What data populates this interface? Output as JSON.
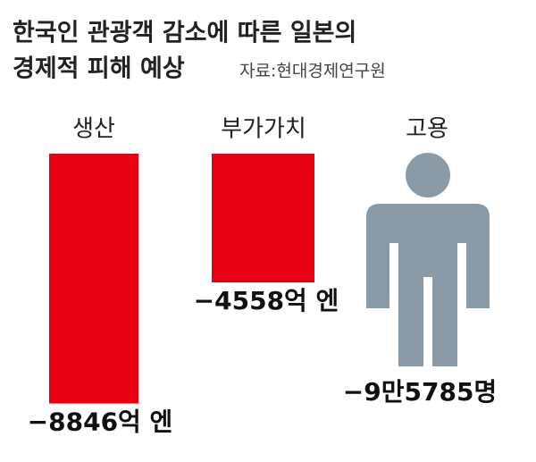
{
  "chart_data": {
    "type": "bar",
    "title": [
      "한국인 관광객 감소에 따른 일본의",
      "경제적 피해 예상"
    ],
    "source": "자료:현대경제연구원",
    "categories": [
      "생산",
      "부가가치"
    ],
    "values": [
      -8846,
      -4558
    ],
    "value_labels": [
      "−8846억 엔",
      "−4558억 엔"
    ],
    "color": "#e60012",
    "ylim": [
      -10000,
      0
    ]
  },
  "employment": {
    "label": "고용",
    "value_label": "−9만5785명"
  }
}
